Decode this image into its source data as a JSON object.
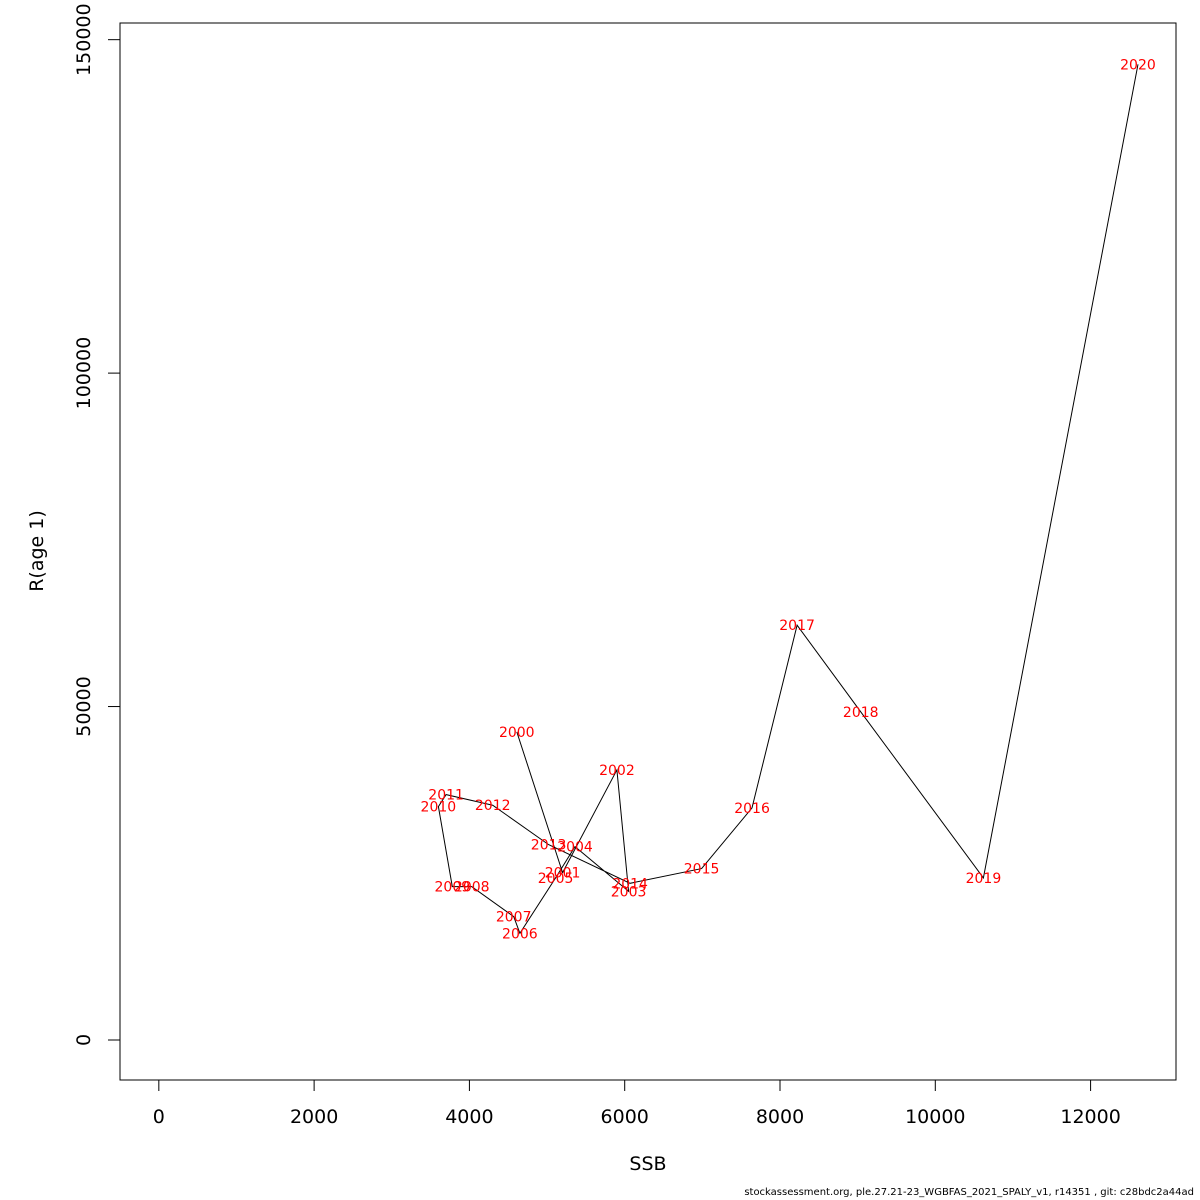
{
  "chart_data": {
    "type": "line",
    "title": "",
    "xlabel": "SSB",
    "ylabel": "R(age 1)",
    "xlim": [
      -500,
      13100
    ],
    "ylim": [
      -6000,
      152500
    ],
    "xticks": [
      "0",
      "2000",
      "4000",
      "6000",
      "8000",
      "10000",
      "12000"
    ],
    "xtick_values": [
      0,
      2000,
      4000,
      6000,
      8000,
      10000,
      12000
    ],
    "yticks": [
      "0",
      "50000",
      "100000",
      "150000"
    ],
    "ytick_values": [
      0,
      50000,
      100000,
      150000
    ],
    "grid": false,
    "line_color": "#000000",
    "label_color": "#ff0000",
    "points": [
      {
        "label": "2000",
        "x": 4610,
        "y": 46200
      },
      {
        "label": "2001",
        "x": 5200,
        "y": 25100
      },
      {
        "label": "2002",
        "x": 5900,
        "y": 40500
      },
      {
        "label": "2003",
        "x": 6050,
        "y": 22300
      },
      {
        "label": "2004",
        "x": 5360,
        "y": 29000
      },
      {
        "label": "2005",
        "x": 5110,
        "y": 24300
      },
      {
        "label": "2006",
        "x": 4650,
        "y": 16000
      },
      {
        "label": "2007",
        "x": 4570,
        "y": 18500
      },
      {
        "label": "2008",
        "x": 4030,
        "y": 23000
      },
      {
        "label": "2009",
        "x": 3780,
        "y": 23000
      },
      {
        "label": "2010",
        "x": 3600,
        "y": 35000
      },
      {
        "label": "2011",
        "x": 3700,
        "y": 36800
      },
      {
        "label": "2012",
        "x": 4300,
        "y": 35200
      },
      {
        "label": "2013",
        "x": 5020,
        "y": 29300
      },
      {
        "label": "2014",
        "x": 6070,
        "y": 23500
      },
      {
        "label": "2015",
        "x": 6990,
        "y": 25700
      },
      {
        "label": "2016",
        "x": 7640,
        "y": 34800
      },
      {
        "label": "2017",
        "x": 8220,
        "y": 62200
      },
      {
        "label": "2018",
        "x": 9040,
        "y": 49200
      },
      {
        "label": "2019",
        "x": 10620,
        "y": 24300
      },
      {
        "label": "2020",
        "x": 12610,
        "y": 146300
      }
    ]
  },
  "footer": "stockassessment.org, ple.27.21-23_WGBFAS_2021_SPALY_v1, r14351 , git: c28bdc2a44ad"
}
